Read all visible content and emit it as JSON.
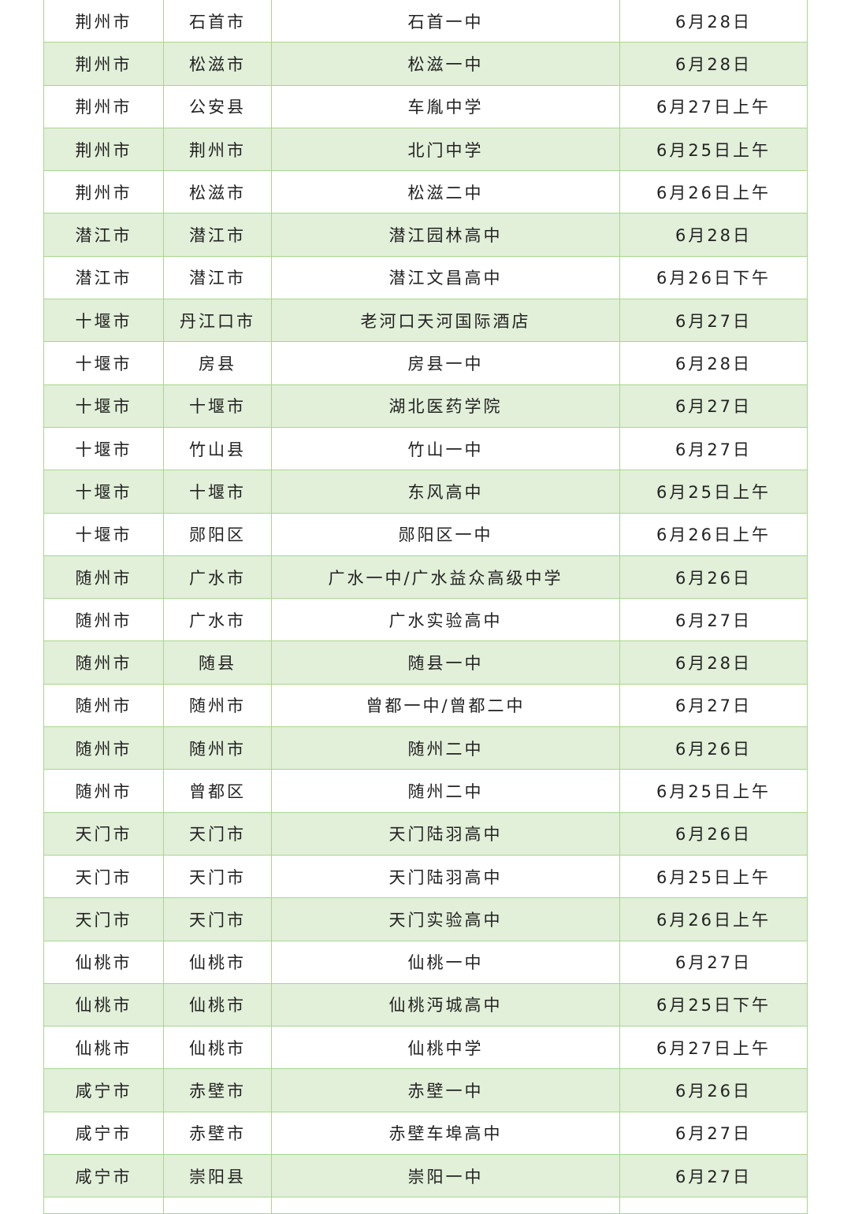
{
  "table": {
    "rows": [
      [
        "荆州市",
        "石首市",
        "石首一中",
        "6月28日"
      ],
      [
        "荆州市",
        "松滋市",
        "松滋一中",
        "6月28日"
      ],
      [
        "荆州市",
        "公安县",
        "车胤中学",
        "6月27日上午"
      ],
      [
        "荆州市",
        "荆州市",
        "北门中学",
        "6月25日上午"
      ],
      [
        "荆州市",
        "松滋市",
        "松滋二中",
        "6月26日上午"
      ],
      [
        "潜江市",
        "潜江市",
        "潜江园林高中",
        "6月28日"
      ],
      [
        "潜江市",
        "潜江市",
        "潜江文昌高中",
        "6月26日下午"
      ],
      [
        "十堰市",
        "丹江口市",
        "老河口天河国际酒店",
        "6月27日"
      ],
      [
        "十堰市",
        "房县",
        "房县一中",
        "6月28日"
      ],
      [
        "十堰市",
        "十堰市",
        "湖北医药学院",
        "6月27日"
      ],
      [
        "十堰市",
        "竹山县",
        "竹山一中",
        "6月27日"
      ],
      [
        "十堰市",
        "十堰市",
        "东风高中",
        "6月25日上午"
      ],
      [
        "十堰市",
        "郧阳区",
        "郧阳区一中",
        "6月26日上午"
      ],
      [
        "随州市",
        "广水市",
        "广水一中/广水益众高级中学",
        "6月26日"
      ],
      [
        "随州市",
        "广水市",
        "广水实验高中",
        "6月27日"
      ],
      [
        "随州市",
        "随县",
        "随县一中",
        "6月28日"
      ],
      [
        "随州市",
        "随州市",
        "曾都一中/曾都二中",
        "6月27日"
      ],
      [
        "随州市",
        "随州市",
        "随州二中",
        "6月26日"
      ],
      [
        "随州市",
        "曾都区",
        "随州二中",
        "6月25日上午"
      ],
      [
        "天门市",
        "天门市",
        "天门陆羽高中",
        "6月26日"
      ],
      [
        "天门市",
        "天门市",
        "天门陆羽高中",
        "6月25日上午"
      ],
      [
        "天门市",
        "天门市",
        "天门实验高中",
        "6月26日上午"
      ],
      [
        "仙桃市",
        "仙桃市",
        "仙桃一中",
        "6月27日"
      ],
      [
        "仙桃市",
        "仙桃市",
        "仙桃沔城高中",
        "6月25日下午"
      ],
      [
        "仙桃市",
        "仙桃市",
        "仙桃中学",
        "6月27日上午"
      ],
      [
        "咸宁市",
        "赤壁市",
        "赤壁一中",
        "6月26日"
      ],
      [
        "咸宁市",
        "赤壁市",
        "赤壁车埠高中",
        "6月27日"
      ],
      [
        "咸宁市",
        "崇阳县",
        "崇阳一中",
        "6月27日"
      ]
    ]
  },
  "colors": {
    "border": "#a9d68f",
    "alt_row": "#e2efd9",
    "text": "#222222"
  }
}
